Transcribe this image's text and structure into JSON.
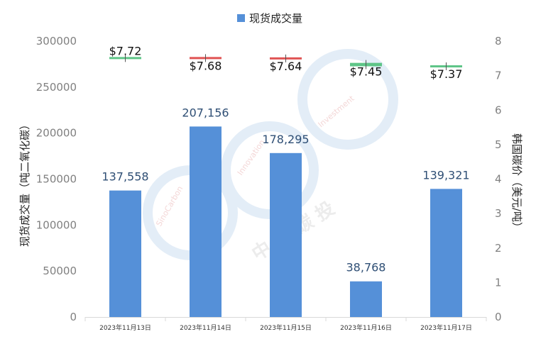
{
  "chart_data": {
    "type": "bar",
    "legend": {
      "label": "现货成交量",
      "color": "#5590d8",
      "position": "top-center"
    },
    "categories": [
      "2023年11月13日",
      "2023年11月14日",
      "2023年11月15日",
      "2023年11月16日",
      "2023年11月17日"
    ],
    "series": [
      {
        "name": "现货成交量",
        "axis": "left",
        "values": [
          137558,
          207156,
          178295,
          38768,
          139321
        ],
        "labels": [
          "137,558",
          "207,156",
          "178,295",
          "38,768",
          "139,321"
        ],
        "color": "#5590d8"
      },
      {
        "axis": "right",
        "marker": "candlestick",
        "values": [
          7.72,
          7.68,
          7.64,
          7.45,
          7.37
        ],
        "labels": [
          "$7.72",
          "$7.68",
          "$7.64",
          "$7.45",
          "$7.37"
        ],
        "candles": [
          {
            "open": 7.51,
            "close": 7.54,
            "color": "#5ec587"
          },
          {
            "open": 7.54,
            "close": 7.52,
            "color": "#e05353"
          },
          {
            "open": 7.53,
            "close": 7.47,
            "color": "#e05353"
          },
          {
            "open": 7.27,
            "close": 7.37,
            "color": "#5ec587"
          },
          {
            "open": 7.24,
            "close": 7.3,
            "color": "#5ec587"
          }
        ]
      }
    ],
    "ylabel": "现货成交量（吨二氧化碳）",
    "y2label": "韩国碳价（美元/吨）",
    "ylim": [
      0,
      300000
    ],
    "y2lim": [
      0,
      8
    ],
    "yticks": [
      "0",
      "50000",
      "100000",
      "150000",
      "200000",
      "250000",
      "300000"
    ],
    "y2ticks": [
      "0",
      "1",
      "2",
      "3",
      "4",
      "5",
      "6",
      "7",
      "8"
    ],
    "grid": false
  },
  "watermark": {
    "text_cn": "中 创 碳 投",
    "text_en_left": "SinoCarbon",
    "text_en_mid": "Innovation",
    "text_en_right": "Investment"
  }
}
